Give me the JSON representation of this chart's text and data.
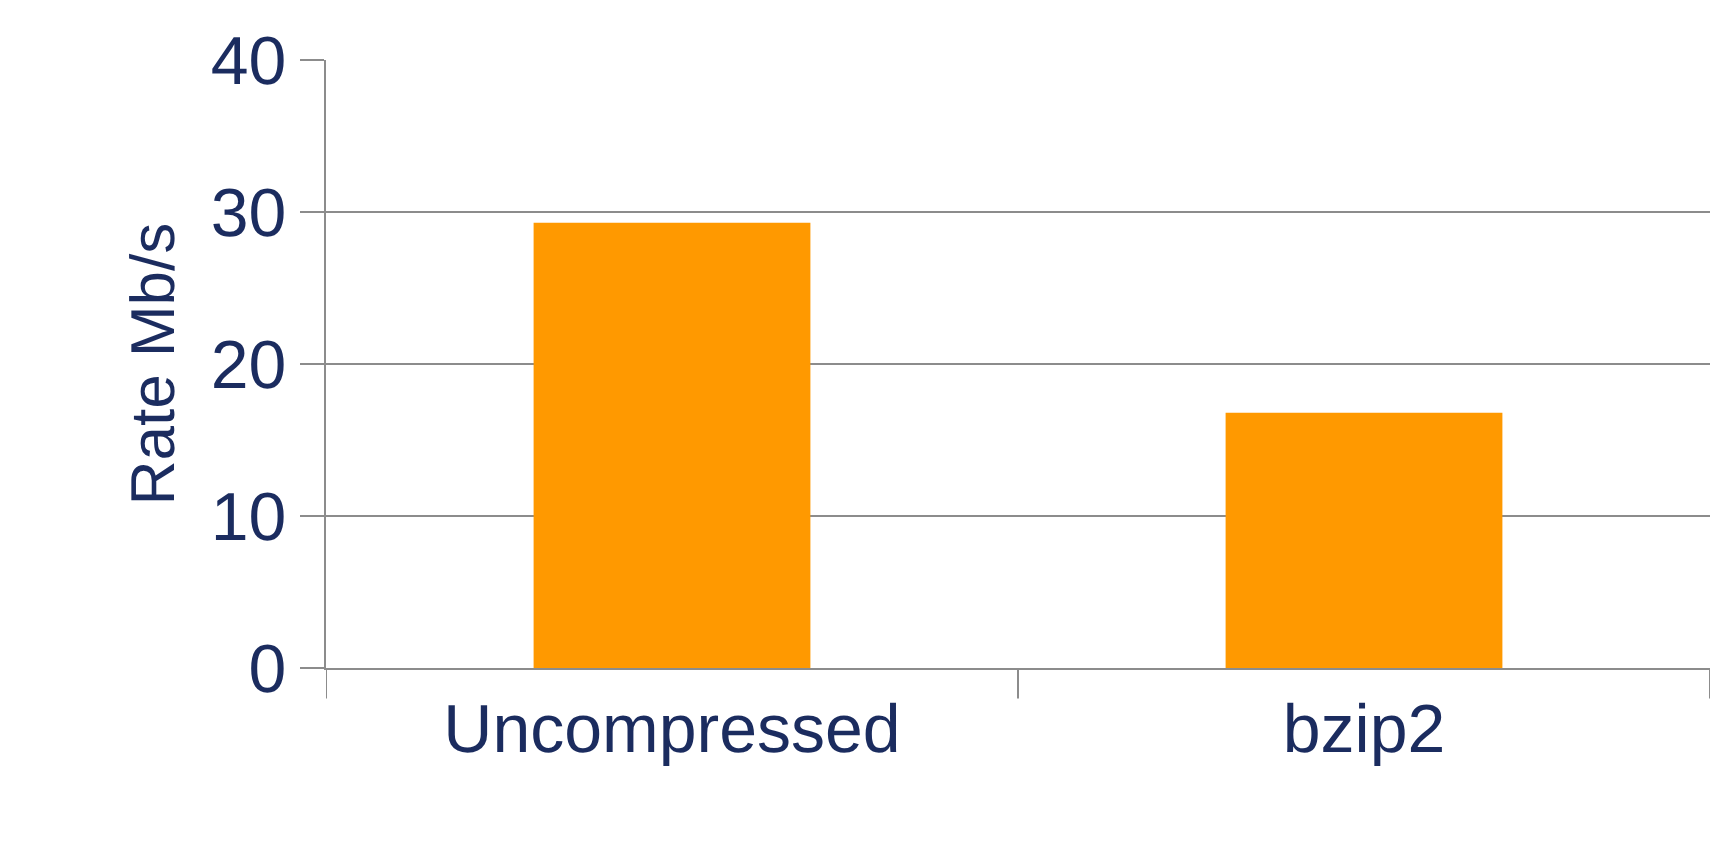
{
  "chart_data": {
    "type": "bar",
    "ylabel": "Rate Mb/s",
    "categories": [
      "Uncompressed",
      "bzip2"
    ],
    "values": [
      29.3,
      16.8
    ],
    "color": "#ff9900",
    "ylim": [
      0,
      40
    ],
    "yticks": [
      0,
      10,
      20,
      30,
      40
    ],
    "grid": "y",
    "legend": false
  }
}
